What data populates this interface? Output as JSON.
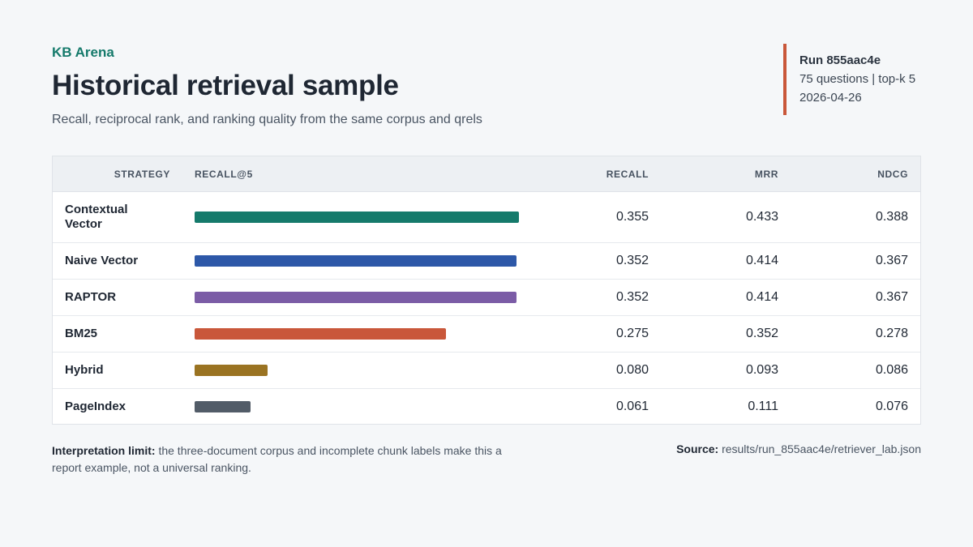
{
  "header": {
    "brand": "KB Arena",
    "title": "Historical retrieval sample",
    "subtitle": "Recall, reciprocal rank, and ranking quality from the same corpus and qrels"
  },
  "run": {
    "id": "Run 855aac4e",
    "meta": "75 questions | top-k 5",
    "date": "2026-04-26"
  },
  "table": {
    "headers": {
      "strategy": "STRATEGY",
      "bar": "RECALL@5",
      "recall": "RECALL",
      "mrr": "MRR",
      "ndcg": "NDCG"
    }
  },
  "chart_data": {
    "type": "bar",
    "orientation": "horizontal",
    "bar_metric": "RECALL@5",
    "categories": [
      "Contextual Vector",
      "Naive Vector",
      "RAPTOR",
      "BM25",
      "Hybrid",
      "PageIndex"
    ],
    "series": [
      {
        "name": "RECALL",
        "values": [
          0.355,
          0.352,
          0.352,
          0.275,
          0.08,
          0.061
        ]
      },
      {
        "name": "MRR",
        "values": [
          0.433,
          0.414,
          0.414,
          0.352,
          0.093,
          0.111
        ]
      },
      {
        "name": "NDCG",
        "values": [
          0.388,
          0.367,
          0.367,
          0.278,
          0.086,
          0.076
        ]
      }
    ],
    "display": {
      "recall": [
        "0.355",
        "0.352",
        "0.352",
        "0.275",
        "0.080",
        "0.061"
      ],
      "mrr": [
        "0.433",
        "0.414",
        "0.414",
        "0.352",
        "0.093",
        "0.111"
      ],
      "ndcg": [
        "0.388",
        "0.367",
        "0.367",
        "0.278",
        "0.086",
        "0.076"
      ]
    },
    "colors": [
      "#157a6b",
      "#2d58a8",
      "#7b5ca6",
      "#c9573a",
      "#9a7322",
      "#525c68"
    ],
    "bar_max": 0.355
  },
  "footer": {
    "limit_label": "Interpretation limit:",
    "limit_text": " the three-document corpus and incomplete chunk labels make this a report example, not a universal ranking.",
    "source_label": "Source:",
    "source_text": " results/run_855aac4e/retriever_lab.json"
  }
}
